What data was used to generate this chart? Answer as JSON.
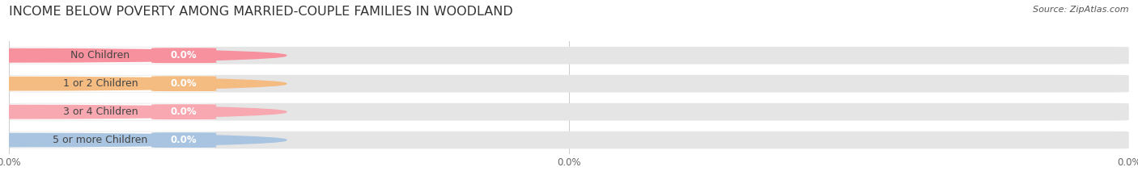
{
  "title": "INCOME BELOW POVERTY AMONG MARRIED-COUPLE FAMILIES IN WOODLAND",
  "source": "Source: ZipAtlas.com",
  "categories": [
    "No Children",
    "1 or 2 Children",
    "3 or 4 Children",
    "5 or more Children"
  ],
  "values": [
    0.0,
    0.0,
    0.0,
    0.0
  ],
  "bar_colors": [
    "#f7919e",
    "#f5bc82",
    "#f7a8b0",
    "#a8c4e0"
  ],
  "background_color": "#ffffff",
  "bar_bg_color": "#e5e5e5",
  "label_bg_color": "#f5f5f5",
  "title_fontsize": 11.5,
  "label_fontsize": 9,
  "value_fontsize": 8.5,
  "source_fontsize": 8,
  "figsize": [
    14.06,
    2.33
  ],
  "dpi": 100
}
